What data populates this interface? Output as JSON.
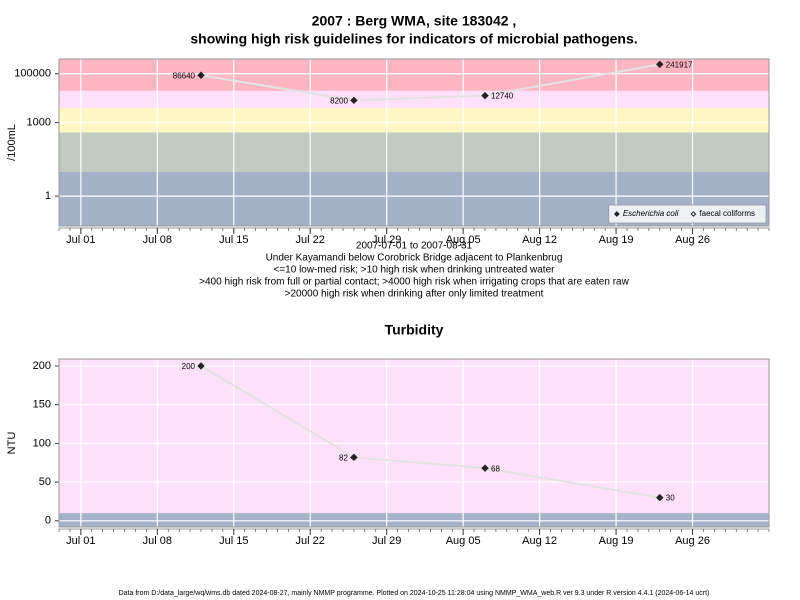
{
  "chart_data": [
    {
      "type": "line",
      "title": "2007 : Berg WMA, site 183042 ,",
      "subtitle": "showing high risk guidelines for indicators of microbial pathogens.",
      "y_label": "/100mL",
      "log": true,
      "grid": true,
      "x": [
        "2007-07-12",
        "2007-07-26",
        "2007-08-07",
        "2007-08-23"
      ],
      "xlim": [
        "2007-06-29",
        "2007-09-02"
      ],
      "xticks": [
        {
          "value": "2007-07-01",
          "label": "Jul 01"
        },
        {
          "value": "2007-07-08",
          "label": "Jul 08"
        },
        {
          "value": "2007-07-15",
          "label": "Jul 15"
        },
        {
          "value": "2007-07-22",
          "label": "Jul 22"
        },
        {
          "value": "2007-07-29",
          "label": "Jul 29"
        },
        {
          "value": "2007-08-05",
          "label": "Aug 05"
        },
        {
          "value": "2007-08-12",
          "label": "Aug 12"
        },
        {
          "value": "2007-08-19",
          "label": "Aug 19"
        },
        {
          "value": "2007-08-26",
          "label": "Aug 26"
        }
      ],
      "ylim": [
        0.06,
        400000
      ],
      "yticks": [
        1,
        1000,
        100000
      ],
      "band_edges": [
        10,
        400,
        4000,
        20000
      ],
      "band_colors": [
        "#a3b2c9",
        "#c1cbc0",
        "#fff6c4",
        "#ffe0fb",
        "#ffb6c3"
      ],
      "series": [
        {
          "name": "Escherichia coli",
          "color": "#222222",
          "filled": true,
          "values": [
            86640,
            8200,
            12740,
            241917
          ]
        },
        {
          "name": "faecal coliforms",
          "color": "#222222",
          "filled": false,
          "values": [
            null,
            null,
            null,
            null
          ]
        }
      ],
      "legend": "lower right",
      "caption": [
        "2007-07-01 to 2007-08-31",
        "Under Kayamandi below Corobrick Bridge adjacent to Plankenbrug",
        "<=10 low-med risk; >10 high risk when drinking untreated water",
        ">400 high risk from full or partial contact; >4000 high risk when irrigating crops that are eaten raw",
        ">20000 high risk when drinking after only limited treatment"
      ]
    },
    {
      "type": "line",
      "title": "Turbidity",
      "y_label": "NTU",
      "log": false,
      "grid": true,
      "x": [
        "2007-07-12",
        "2007-07-26",
        "2007-08-07",
        "2007-08-23"
      ],
      "xlim": [
        "2007-06-29",
        "2007-09-02"
      ],
      "xticks": [
        {
          "value": "2007-07-01",
          "label": "Jul 01"
        },
        {
          "value": "2007-07-08",
          "label": "Jul 08"
        },
        {
          "value": "2007-07-15",
          "label": "Jul 15"
        },
        {
          "value": "2007-07-22",
          "label": "Jul 22"
        },
        {
          "value": "2007-07-29",
          "label": "Jul 29"
        },
        {
          "value": "2007-08-05",
          "label": "Aug 05"
        },
        {
          "value": "2007-08-12",
          "label": "Aug 12"
        },
        {
          "value": "2007-08-19",
          "label": "Aug 19"
        },
        {
          "value": "2007-08-26",
          "label": "Aug 26"
        }
      ],
      "ylim": [
        -8,
        209
      ],
      "yticks": [
        0,
        50,
        100,
        150,
        200
      ],
      "band_edges": [
        10
      ],
      "band_colors": [
        "#a3b2c9",
        "#ffe0fb"
      ],
      "series": [
        {
          "color": "#222222",
          "filled": true,
          "values": [
            200,
            82,
            68,
            30
          ]
        }
      ]
    }
  ],
  "footer": "Data from D:/data_large/wq/wms.db dated 2024-08-27, mainly NMMP programme. Plotted on 2024-10-25 11:28:04 using NMMP_WMA_web.R ver 9.3 under R version 4.4.1 (2024-06-14 ucrt)"
}
